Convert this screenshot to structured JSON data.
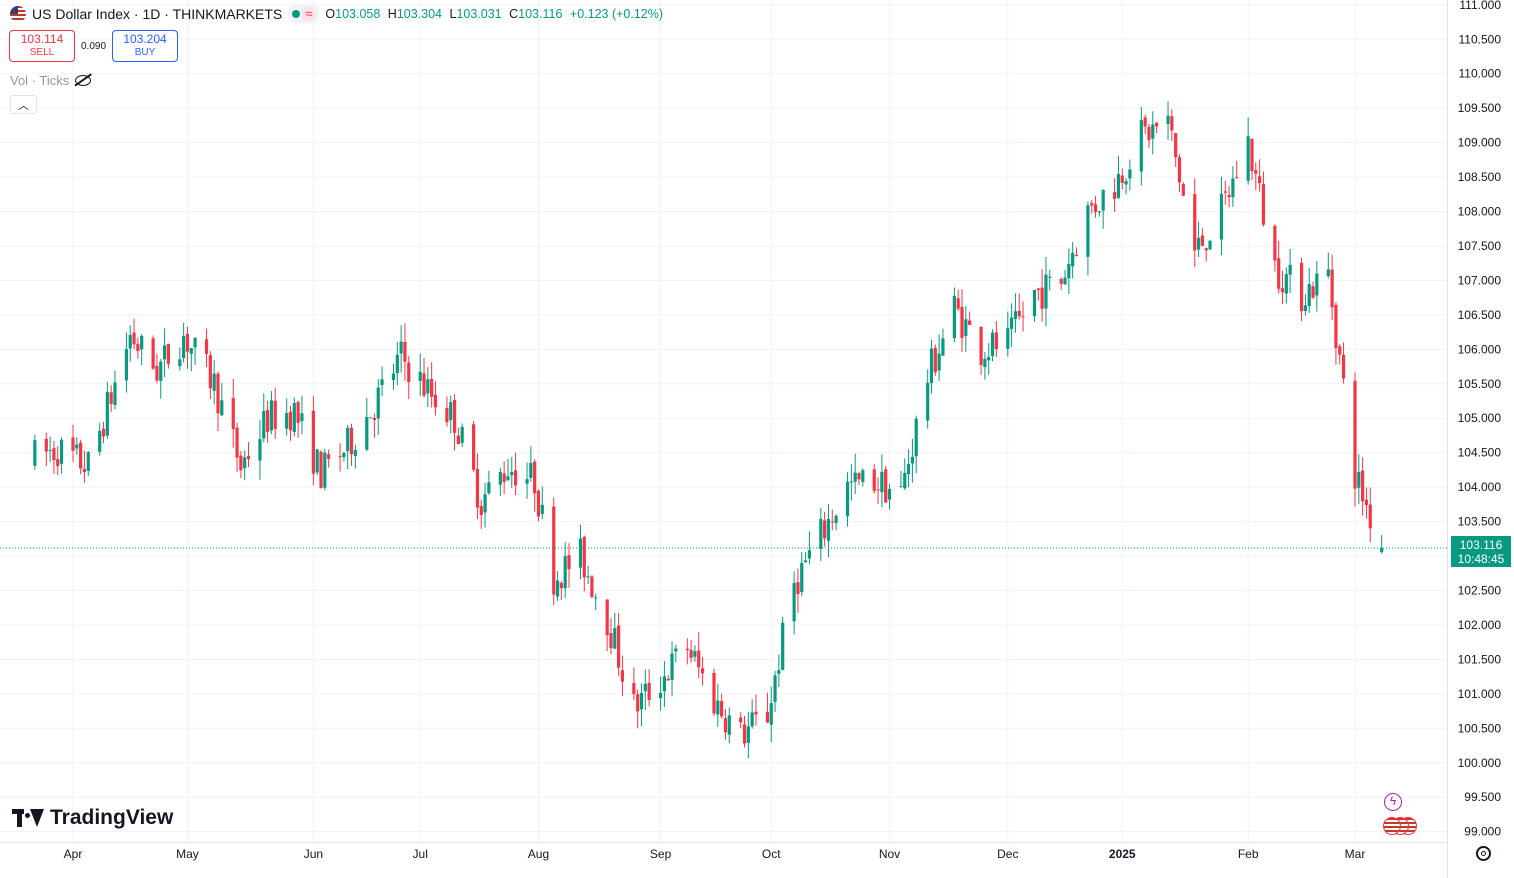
{
  "header": {
    "symbol_title": "US Dollar Index · 1D · THINKMARKETS",
    "ohlc": {
      "o_label": "O",
      "o_value": "103.058",
      "h_label": "H",
      "h_value": "103.304",
      "l_label": "L",
      "l_value": "103.031",
      "c_label": "C",
      "c_value": "103.116",
      "change": "+0.123 (+0.12%)"
    }
  },
  "trade": {
    "sell_price": "103.114",
    "sell_label": "SELL",
    "spread": "0.090",
    "buy_price": "103.204",
    "buy_label": "BUY"
  },
  "indicator": {
    "label": "Vol · Ticks"
  },
  "logo": {
    "text": "TradingView"
  },
  "price_tag": {
    "price": "103.116",
    "countdown": "10:48:45"
  },
  "colors": {
    "up": "#089981",
    "down": "#f23645",
    "grid": "#f0f3fa",
    "axis_text": "#131722"
  },
  "icons": {
    "flag": "us-flag-icon",
    "eye": "eye-off-icon",
    "collapse": "chevron-up-icon",
    "bolt": "lightning-icon",
    "settings": "gear-icon"
  },
  "chart_data": {
    "type": "candlestick",
    "ylim": [
      98.85,
      111.07
    ],
    "y_ticks": [
      "111.000",
      "110.500",
      "110.000",
      "109.500",
      "109.000",
      "108.500",
      "108.000",
      "107.500",
      "107.000",
      "106.500",
      "106.000",
      "105.500",
      "105.000",
      "104.500",
      "104.000",
      "103.500",
      "103.000",
      "102.500",
      "102.000",
      "101.500",
      "101.000",
      "100.500",
      "100.000",
      "99.500",
      "99.000"
    ],
    "x_ticks": [
      {
        "label": "Apr",
        "date": "2024-04-01"
      },
      {
        "label": "May",
        "date": "2024-05-01"
      },
      {
        "label": "Jun",
        "date": "2024-06-03"
      },
      {
        "label": "Jul",
        "date": "2024-07-01"
      },
      {
        "label": "Aug",
        "date": "2024-08-01"
      },
      {
        "label": "Sep",
        "date": "2024-09-02"
      },
      {
        "label": "Oct",
        "date": "2024-10-01"
      },
      {
        "label": "Nov",
        "date": "2024-11-01"
      },
      {
        "label": "Dec",
        "date": "2024-12-02"
      },
      {
        "label": "2025",
        "date": "2025-01-01"
      },
      {
        "label": "Feb",
        "date": "2025-02-03"
      },
      {
        "label": "Mar",
        "date": "2025-03-03"
      }
    ],
    "last_price": 103.116,
    "grid": true,
    "close_path": [
      [
        "2024-03-22",
        104.45
      ],
      [
        "2024-03-28",
        104.55
      ],
      [
        "2024-04-05",
        104.3
      ],
      [
        "2024-04-10",
        105.15
      ],
      [
        "2024-04-16",
        106.2
      ],
      [
        "2024-04-23",
        105.7
      ],
      [
        "2024-04-30",
        106.2
      ],
      [
        "2024-05-08",
        105.5
      ],
      [
        "2024-05-15",
        104.3
      ],
      [
        "2024-05-22",
        105.0
      ],
      [
        "2024-05-29",
        105.1
      ],
      [
        "2024-06-05",
        104.2
      ],
      [
        "2024-06-12",
        104.6
      ],
      [
        "2024-06-19",
        105.2
      ],
      [
        "2024-06-26",
        105.9
      ],
      [
        "2024-07-03",
        105.4
      ],
      [
        "2024-07-10",
        105.0
      ],
      [
        "2024-07-17",
        103.8
      ],
      [
        "2024-07-24",
        104.3
      ],
      [
        "2024-07-31",
        104.1
      ],
      [
        "2024-08-05",
        102.7
      ],
      [
        "2024-08-12",
        103.0
      ],
      [
        "2024-08-19",
        102.1
      ],
      [
        "2024-08-26",
        100.8
      ],
      [
        "2024-09-02",
        101.2
      ],
      [
        "2024-09-09",
        101.7
      ],
      [
        "2024-09-16",
        100.9
      ],
      [
        "2024-09-23",
        100.4
      ],
      [
        "2024-09-30",
        100.7
      ],
      [
        "2024-10-07",
        102.6
      ],
      [
        "2024-10-14",
        103.3
      ],
      [
        "2024-10-21",
        104.0
      ],
      [
        "2024-10-28",
        104.1
      ],
      [
        "2024-11-04",
        103.9
      ],
      [
        "2024-11-11",
        105.6
      ],
      [
        "2024-11-18",
        106.6
      ],
      [
        "2024-11-25",
        106.0
      ],
      [
        "2024-12-02",
        106.1
      ],
      [
        "2024-12-09",
        106.8
      ],
      [
        "2024-12-16",
        107.0
      ],
      [
        "2024-12-23",
        108.0
      ],
      [
        "2024-12-30",
        108.4
      ],
      [
        "2025-01-06",
        109.1
      ],
      [
        "2025-01-13",
        109.3
      ],
      [
        "2025-01-20",
        107.4
      ],
      [
        "2025-01-27",
        108.0
      ],
      [
        "2025-02-03",
        109.0
      ],
      [
        "2025-02-10",
        107.2
      ],
      [
        "2025-02-17",
        106.8
      ],
      [
        "2025-02-24",
        107.1
      ],
      [
        "2025-03-03",
        104.2
      ],
      [
        "2025-03-10",
        103.116
      ]
    ]
  }
}
